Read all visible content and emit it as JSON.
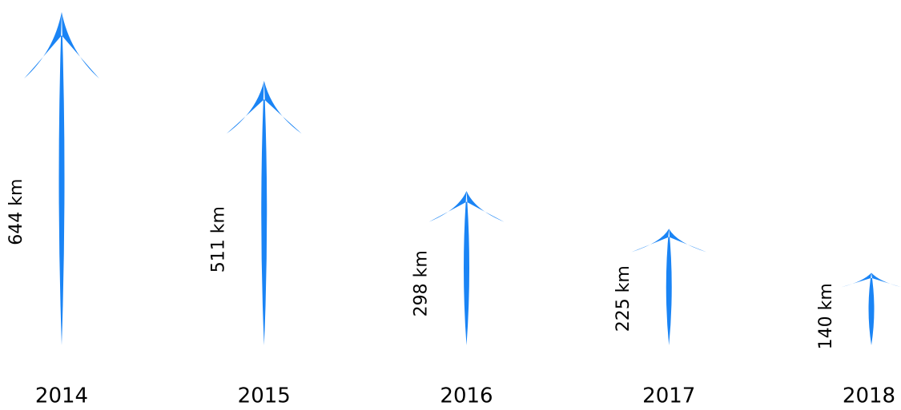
{
  "chart_data": {
    "type": "arrow",
    "categories": [
      "2014",
      "2015",
      "2016",
      "2017",
      "2018"
    ],
    "values": [
      644,
      511,
      298,
      225,
      140
    ],
    "value_labels": [
      "644 km",
      "511  km",
      "298  km",
      "225 km",
      "140 km"
    ],
    "color": "#1a84f5"
  }
}
